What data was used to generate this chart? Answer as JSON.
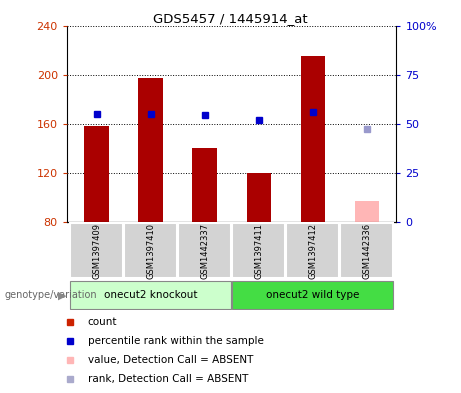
{
  "title": "GDS5457 / 1445914_at",
  "samples": [
    "GSM1397409",
    "GSM1397410",
    "GSM1442337",
    "GSM1397411",
    "GSM1397412",
    "GSM1442336"
  ],
  "bar_values": [
    158,
    197,
    140,
    120,
    215,
    97
  ],
  "bar_colors": [
    "#aa0000",
    "#aa0000",
    "#aa0000",
    "#aa0000",
    "#aa0000",
    "#ffb6b6"
  ],
  "rank_values": [
    168,
    168,
    167,
    163,
    170,
    156
  ],
  "rank_colors": [
    "#0000cc",
    "#0000cc",
    "#0000cc",
    "#0000cc",
    "#0000cc",
    "#9999cc"
  ],
  "ylim_left": [
    80,
    240
  ],
  "ylim_right": [
    0,
    100
  ],
  "yticks_left": [
    80,
    120,
    160,
    200,
    240
  ],
  "yticks_right": [
    0,
    25,
    50,
    75,
    100
  ],
  "ytick_labels_right": [
    "0",
    "25",
    "50",
    "75",
    "100%"
  ],
  "group1_label": "onecut2 knockout",
  "group2_label": "onecut2 wild type",
  "group1_indices": [
    0,
    1,
    2
  ],
  "group2_indices": [
    3,
    4,
    5
  ],
  "group1_color": "#ccffcc",
  "group2_color": "#44dd44",
  "xlabel_text": "genotype/variation",
  "legend_items": [
    {
      "label": "count",
      "color": "#cc2200",
      "marker": "s"
    },
    {
      "label": "percentile rank within the sample",
      "color": "#0000cc",
      "marker": "s"
    },
    {
      "label": "value, Detection Call = ABSENT",
      "color": "#ffb6b6",
      "marker": "s"
    },
    {
      "label": "rank, Detection Call = ABSENT",
      "color": "#aaaacc",
      "marker": "s"
    }
  ],
  "bar_width": 0.45,
  "base_value": 80,
  "marker_size": 5
}
